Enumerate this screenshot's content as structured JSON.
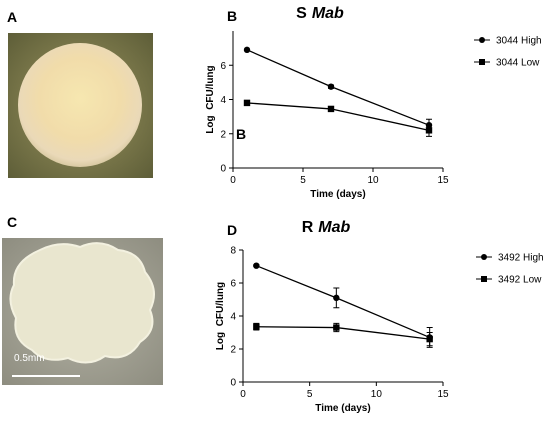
{
  "panels": {
    "a": "A",
    "b": "B",
    "c": "C",
    "d": "D",
    "b_inset": "B",
    "scale_bar": "0.5mm"
  },
  "chart_data": [
    {
      "type": "line",
      "title_parts": [
        "S",
        "Mab"
      ],
      "x_label": "Time (days)",
      "y_label": "Log  CFU/lung",
      "x": [
        1,
        7,
        14
      ],
      "xlim": [
        0,
        15
      ],
      "xticks": [
        0,
        5,
        10,
        15
      ],
      "ylim": [
        0,
        8
      ],
      "yticks": [
        0,
        2,
        4,
        6
      ],
      "legend": "right",
      "series": [
        {
          "name": "3044 High",
          "marker": "circle",
          "color": "#000000",
          "values": [
            6.9,
            4.75,
            2.5
          ],
          "errors": [
            0.05,
            0.1,
            0.35
          ]
        },
        {
          "name": "3044 Low",
          "marker": "square",
          "color": "#000000",
          "values": [
            3.8,
            3.45,
            2.2
          ],
          "errors": [
            0.15,
            0.1,
            0.35
          ]
        }
      ]
    },
    {
      "type": "line",
      "title_parts": [
        "R",
        "Mab"
      ],
      "x_label": "Time (days)",
      "y_label": "Log  CFU/lung",
      "x": [
        1,
        7,
        14
      ],
      "xlim": [
        0,
        15
      ],
      "xticks": [
        0,
        5,
        10,
        15
      ],
      "ylim": [
        0,
        8
      ],
      "yticks": [
        0,
        2,
        4,
        6,
        8
      ],
      "legend": "right",
      "series": [
        {
          "name": "3492 High",
          "marker": "circle",
          "color": "#000000",
          "values": [
            7.05,
            5.1,
            2.7
          ],
          "errors": [
            0.05,
            0.6,
            0.6
          ]
        },
        {
          "name": "3492 Low",
          "marker": "square",
          "color": "#000000",
          "values": [
            3.35,
            3.3,
            2.6
          ],
          "errors": [
            0.2,
            0.25,
            0.4
          ]
        }
      ]
    }
  ]
}
